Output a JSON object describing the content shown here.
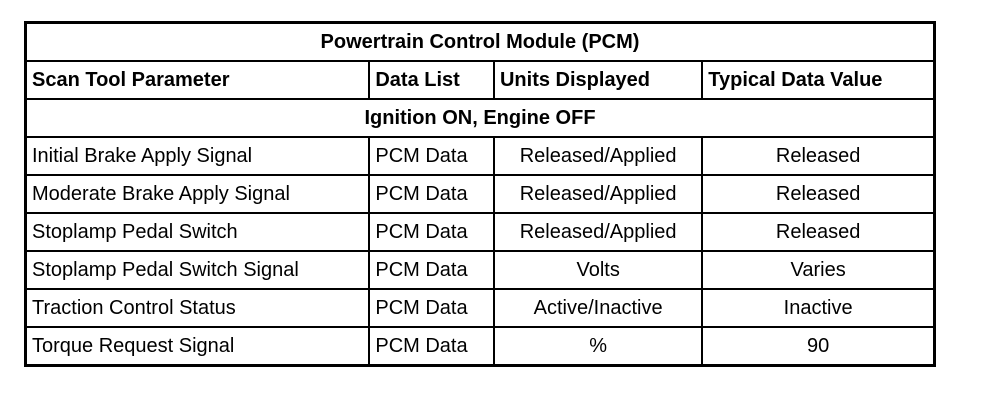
{
  "title": "Powertrain Control Module (PCM)",
  "headers": [
    "Scan Tool Parameter",
    "Data List",
    "Units Displayed",
    "Typical Data Value"
  ],
  "section": "Ignition ON, Engine OFF",
  "rows": [
    [
      "Initial Brake Apply Signal",
      "PCM Data",
      "Released/Applied",
      "Released"
    ],
    [
      "Moderate Brake Apply Signal",
      "PCM Data",
      "Released/Applied",
      "Released"
    ],
    [
      "Stoplamp Pedal Switch",
      "PCM Data",
      "Released/Applied",
      "Released"
    ],
    [
      "Stoplamp Pedal Switch Signal",
      "PCM Data",
      "Volts",
      "Varies"
    ],
    [
      "Traction Control Status",
      "PCM Data",
      "Active/Inactive",
      "Inactive"
    ],
    [
      "Torque Request Signal",
      "PCM Data",
      "%",
      "90"
    ]
  ]
}
